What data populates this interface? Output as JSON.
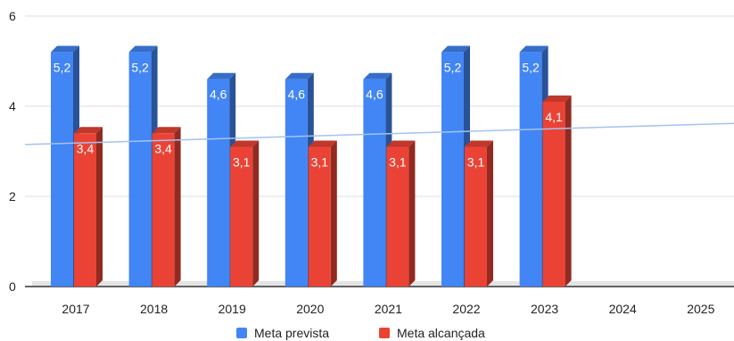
{
  "chart_data": {
    "type": "bar",
    "categories": [
      "2017",
      "2018",
      "2019",
      "2020",
      "2021",
      "2022",
      "2023",
      "2024",
      "2025"
    ],
    "series": [
      {
        "name": "Meta prevista",
        "values": [
          5.2,
          5.2,
          4.6,
          4.6,
          4.6,
          5.2,
          5.2,
          null,
          null
        ],
        "labels": [
          "5,2",
          "5,2",
          "4,6",
          "4,6",
          "4,6",
          "5,2",
          "5,2",
          "",
          ""
        ],
        "color": "#4285f4"
      },
      {
        "name": "Meta alcançada",
        "values": [
          3.4,
          3.4,
          3.1,
          3.1,
          3.1,
          3.1,
          4.1,
          null,
          null
        ],
        "labels": [
          "3,4",
          "3,4",
          "3,1",
          "3,1",
          "3,1",
          "3,1",
          "4,1",
          "",
          ""
        ],
        "color": "#ea4335"
      }
    ],
    "yticks": [
      "0",
      "2",
      "4",
      "6"
    ],
    "ylim": [
      0,
      6
    ],
    "trendline": {
      "color": "#a4c2f4",
      "start": 3.15,
      "end": 3.62
    },
    "grid": true,
    "legend": "bottom"
  }
}
